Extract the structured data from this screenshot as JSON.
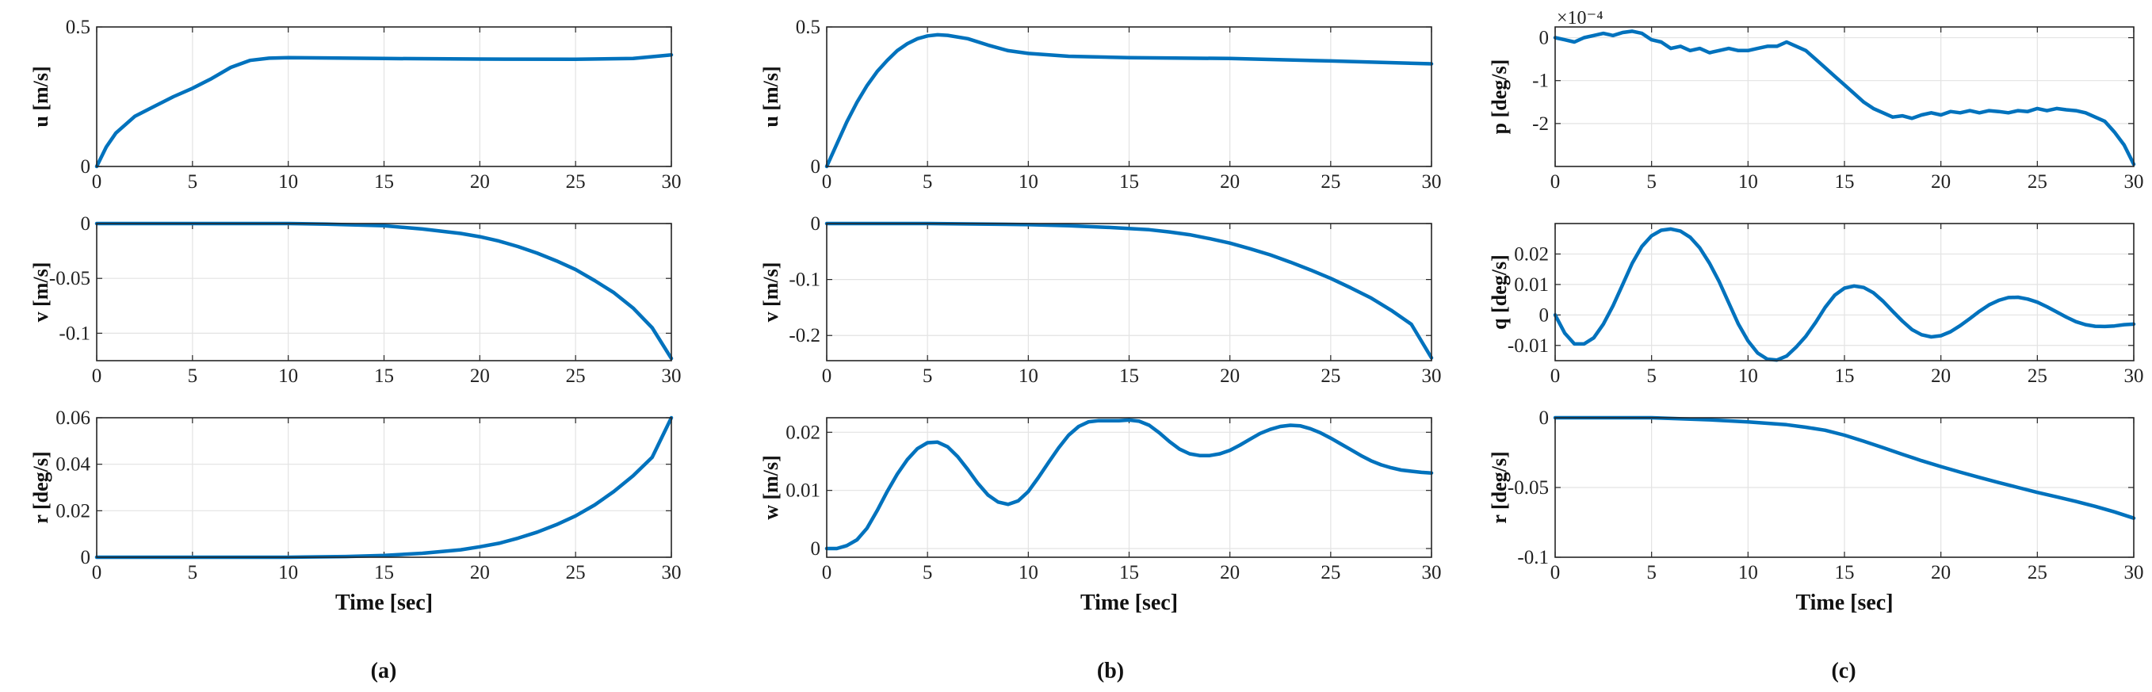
{
  "captions": [
    "(a)",
    "(b)",
    "(c)"
  ],
  "x_label": "Time [sec]",
  "colors": {
    "line": "#0072BD",
    "axis": "#262626",
    "grid": "#e3e3e3"
  },
  "chart_data": [
    {
      "type": "line",
      "column": 0,
      "row": 0,
      "ylabel": "u [m/s]",
      "xlim": [
        0,
        30
      ],
      "ylim": [
        0,
        0.5
      ],
      "xticks": [
        0,
        5,
        10,
        15,
        20,
        25,
        30
      ],
      "xtick_labels": [
        "0",
        "5",
        "10",
        "15",
        "20",
        "25",
        "30"
      ],
      "yticks": [
        0,
        0.5
      ],
      "ytick_labels": [
        "0",
        "0.5"
      ],
      "show_xlabel": false,
      "x": [
        0,
        0.5,
        1,
        2,
        3,
        4,
        5,
        6,
        7,
        8,
        9,
        10,
        12,
        15,
        20,
        25,
        28,
        30
      ],
      "y": [
        0,
        0.07,
        0.12,
        0.18,
        0.215,
        0.25,
        0.28,
        0.315,
        0.355,
        0.38,
        0.388,
        0.39,
        0.389,
        0.387,
        0.385,
        0.384,
        0.387,
        0.4
      ]
    },
    {
      "type": "line",
      "column": 0,
      "row": 1,
      "ylabel": "v [m/s]",
      "xlim": [
        0,
        30
      ],
      "ylim": [
        -0.125,
        0
      ],
      "xticks": [
        0,
        5,
        10,
        15,
        20,
        25,
        30
      ],
      "xtick_labels": [
        "0",
        "5",
        "10",
        "15",
        "20",
        "25",
        "30"
      ],
      "yticks": [
        0,
        -0.05,
        -0.1
      ],
      "ytick_labels": [
        "0",
        "-0.05",
        "-0.1"
      ],
      "show_xlabel": false,
      "x": [
        0,
        5,
        10,
        12,
        15,
        17,
        19,
        20,
        21,
        22,
        23,
        24,
        25,
        26,
        27,
        28,
        29,
        30
      ],
      "y": [
        0,
        0,
        0,
        -0.0005,
        -0.002,
        -0.005,
        -0.009,
        -0.012,
        -0.016,
        -0.021,
        -0.027,
        -0.034,
        -0.042,
        -0.052,
        -0.063,
        -0.077,
        -0.095,
        -0.123
      ]
    },
    {
      "type": "line",
      "column": 0,
      "row": 2,
      "ylabel": "r [deg/s]",
      "xlim": [
        0,
        30
      ],
      "ylim": [
        0,
        0.06
      ],
      "xticks": [
        0,
        5,
        10,
        15,
        20,
        25,
        30
      ],
      "xtick_labels": [
        "0",
        "5",
        "10",
        "15",
        "20",
        "25",
        "30"
      ],
      "yticks": [
        0,
        0.02,
        0.04,
        0.06
      ],
      "ytick_labels": [
        "0",
        "0.02",
        "0.04",
        "0.06"
      ],
      "show_xlabel": true,
      "x": [
        0,
        5,
        10,
        13,
        15,
        17,
        19,
        20,
        21,
        22,
        23,
        24,
        25,
        26,
        27,
        28,
        29,
        30
      ],
      "y": [
        0,
        0,
        0,
        0.0003,
        0.0008,
        0.0017,
        0.0032,
        0.0045,
        0.006,
        0.0082,
        0.0108,
        0.014,
        0.0178,
        0.0225,
        0.0283,
        0.035,
        0.043,
        0.06
      ]
    },
    {
      "type": "line",
      "column": 1,
      "row": 0,
      "ylabel": "u [m/s]",
      "xlim": [
        0,
        30
      ],
      "ylim": [
        0,
        0.5
      ],
      "xticks": [
        0,
        5,
        10,
        15,
        20,
        25,
        30
      ],
      "xtick_labels": [
        "0",
        "5",
        "10",
        "15",
        "20",
        "25",
        "30"
      ],
      "yticks": [
        0,
        0.5
      ],
      "ytick_labels": [
        "0",
        "0.5"
      ],
      "show_xlabel": false,
      "x": [
        0,
        0.5,
        1,
        1.5,
        2,
        2.5,
        3,
        3.5,
        4,
        4.5,
        5,
        5.5,
        6,
        7,
        8,
        9,
        10,
        12,
        15,
        20,
        25,
        30
      ],
      "y": [
        0,
        0.08,
        0.16,
        0.23,
        0.29,
        0.34,
        0.38,
        0.415,
        0.44,
        0.458,
        0.468,
        0.472,
        0.47,
        0.458,
        0.435,
        0.415,
        0.405,
        0.395,
        0.39,
        0.387,
        0.378,
        0.368
      ]
    },
    {
      "type": "line",
      "column": 1,
      "row": 1,
      "ylabel": "v [m/s]",
      "xlim": [
        0,
        30
      ],
      "ylim": [
        -0.245,
        0
      ],
      "xticks": [
        0,
        5,
        10,
        15,
        20,
        25,
        30
      ],
      "xtick_labels": [
        "0",
        "5",
        "10",
        "15",
        "20",
        "25",
        "30"
      ],
      "yticks": [
        0,
        -0.1,
        -0.2
      ],
      "ytick_labels": [
        "0",
        "-0.1",
        "-0.2"
      ],
      "show_xlabel": false,
      "x": [
        0,
        5,
        8,
        10,
        12,
        14,
        16,
        17,
        18,
        19,
        20,
        21,
        22,
        23,
        24,
        25,
        26,
        27,
        28,
        29,
        30
      ],
      "y": [
        0,
        0,
        -0.001,
        -0.002,
        -0.004,
        -0.007,
        -0.011,
        -0.015,
        -0.02,
        -0.027,
        -0.035,
        -0.045,
        -0.056,
        -0.069,
        -0.083,
        -0.098,
        -0.115,
        -0.133,
        -0.155,
        -0.18,
        -0.24
      ]
    },
    {
      "type": "line",
      "column": 1,
      "row": 2,
      "ylabel": "w [m/s]",
      "xlim": [
        0,
        30
      ],
      "ylim": [
        -0.0015,
        0.0225
      ],
      "xticks": [
        0,
        5,
        10,
        15,
        20,
        25,
        30
      ],
      "xtick_labels": [
        "0",
        "5",
        "10",
        "15",
        "20",
        "25",
        "30"
      ],
      "yticks": [
        0,
        0.01,
        0.02
      ],
      "ytick_labels": [
        "0",
        "0.01",
        "0.02"
      ],
      "show_xlabel": true,
      "x": [
        0,
        0.5,
        1,
        1.5,
        2,
        2.5,
        3,
        3.5,
        4,
        4.5,
        5,
        5.5,
        6,
        6.5,
        7,
        7.5,
        8,
        8.5,
        9,
        9.5,
        10,
        10.5,
        11,
        11.5,
        12,
        12.5,
        13,
        13.5,
        14,
        14.5,
        15,
        15.5,
        16,
        16.5,
        17,
        17.5,
        18,
        18.5,
        19,
        19.5,
        20,
        20.5,
        21,
        21.5,
        22,
        22.5,
        23,
        23.5,
        24,
        24.5,
        25,
        25.5,
        26,
        26.5,
        27,
        27.5,
        28,
        28.5,
        29,
        29.5,
        30
      ],
      "y": [
        0,
        0,
        0.0005,
        0.0015,
        0.0035,
        0.0065,
        0.0098,
        0.0128,
        0.0153,
        0.0172,
        0.0182,
        0.0183,
        0.0175,
        0.0158,
        0.0136,
        0.0112,
        0.0092,
        0.008,
        0.0076,
        0.0082,
        0.0098,
        0.0122,
        0.0148,
        0.0173,
        0.0195,
        0.021,
        0.0218,
        0.022,
        0.022,
        0.022,
        0.0221,
        0.0219,
        0.0212,
        0.0199,
        0.0184,
        0.0171,
        0.0163,
        0.016,
        0.016,
        0.0163,
        0.0169,
        0.0178,
        0.0188,
        0.0198,
        0.0205,
        0.021,
        0.0212,
        0.0211,
        0.0206,
        0.0199,
        0.019,
        0.018,
        0.017,
        0.016,
        0.0151,
        0.0144,
        0.0139,
        0.0135,
        0.0133,
        0.0131,
        0.013
      ]
    },
    {
      "type": "line",
      "column": 2,
      "row": 0,
      "ylabel": "p [deg/s]",
      "scale_label": "×10⁻⁴",
      "xlim": [
        0,
        30
      ],
      "ylim": [
        -3,
        0.25
      ],
      "xticks": [
        0,
        5,
        10,
        15,
        20,
        25,
        30
      ],
      "xtick_labels": [
        "0",
        "5",
        "10",
        "15",
        "20",
        "25",
        "30"
      ],
      "yticks": [
        0,
        -1,
        -2
      ],
      "ytick_labels": [
        "0",
        "-1",
        "-2"
      ],
      "show_xlabel": false,
      "x": [
        0,
        0.5,
        1,
        1.5,
        2,
        2.5,
        3,
        3.5,
        4,
        4.5,
        5,
        5.5,
        6,
        6.5,
        7,
        7.5,
        8,
        8.5,
        9,
        9.5,
        10,
        10.5,
        11,
        11.5,
        12,
        12.5,
        13,
        13.5,
        14,
        14.5,
        15,
        15.5,
        16,
        16.5,
        17,
        17.5,
        18,
        18.5,
        19,
        19.5,
        20,
        20.5,
        21,
        21.5,
        22,
        22.5,
        23,
        23.5,
        24,
        24.5,
        25,
        25.5,
        26,
        26.5,
        27,
        27.5,
        28,
        28.5,
        29,
        29.5,
        30
      ],
      "y": [
        0,
        -0.05,
        -0.1,
        0,
        0.05,
        0.1,
        0.05,
        0.12,
        0.15,
        0.1,
        -0.05,
        -0.1,
        -0.25,
        -0.2,
        -0.3,
        -0.25,
        -0.35,
        -0.3,
        -0.25,
        -0.3,
        -0.3,
        -0.25,
        -0.2,
        -0.2,
        -0.1,
        -0.2,
        -0.3,
        -0.5,
        -0.7,
        -0.9,
        -1.1,
        -1.3,
        -1.5,
        -1.65,
        -1.75,
        -1.85,
        -1.82,
        -1.88,
        -1.8,
        -1.75,
        -1.8,
        -1.72,
        -1.75,
        -1.7,
        -1.75,
        -1.7,
        -1.72,
        -1.75,
        -1.7,
        -1.72,
        -1.65,
        -1.7,
        -1.65,
        -1.68,
        -1.7,
        -1.75,
        -1.85,
        -1.95,
        -2.2,
        -2.5,
        -2.95
      ]
    },
    {
      "type": "line",
      "column": 2,
      "row": 1,
      "ylabel": "q [deg/s]",
      "xlim": [
        0,
        30
      ],
      "ylim": [
        -0.015,
        0.03
      ],
      "xticks": [
        0,
        5,
        10,
        15,
        20,
        25,
        30
      ],
      "xtick_labels": [
        "0",
        "5",
        "10",
        "15",
        "20",
        "25",
        "30"
      ],
      "yticks": [
        -0.01,
        0,
        0.01,
        0.02
      ],
      "ytick_labels": [
        "-0.01",
        "0",
        "0.01",
        "0.02"
      ],
      "show_xlabel": false,
      "x": [
        0,
        0.5,
        1,
        1.5,
        2,
        2.5,
        3,
        3.5,
        4,
        4.5,
        5,
        5.5,
        6,
        6.5,
        7,
        7.5,
        8,
        8.5,
        9,
        9.5,
        10,
        10.5,
        11,
        11.5,
        12,
        12.5,
        13,
        13.5,
        14,
        14.5,
        15,
        15.5,
        16,
        16.5,
        17,
        17.5,
        18,
        18.5,
        19,
        19.5,
        20,
        20.5,
        21,
        21.5,
        22,
        22.5,
        23,
        23.5,
        24,
        24.5,
        25,
        25.5,
        26,
        26.5,
        27,
        27.5,
        28,
        28.5,
        29,
        29.5,
        30
      ],
      "y": [
        0,
        -0.006,
        -0.0095,
        -0.0095,
        -0.0075,
        -0.003,
        0.003,
        0.01,
        0.017,
        0.0225,
        0.026,
        0.0278,
        0.0282,
        0.0275,
        0.0255,
        0.022,
        0.017,
        0.011,
        0.004,
        -0.003,
        -0.0085,
        -0.0125,
        -0.0145,
        -0.0148,
        -0.0135,
        -0.0105,
        -0.007,
        -0.0025,
        0.0025,
        0.0065,
        0.0088,
        0.0095,
        0.009,
        0.0073,
        0.0045,
        0.0012,
        -0.002,
        -0.0048,
        -0.0065,
        -0.0072,
        -0.0068,
        -0.0055,
        -0.0035,
        -0.0012,
        0.0012,
        0.0033,
        0.0048,
        0.0057,
        0.0058,
        0.0052,
        0.0042,
        0.0027,
        0.001,
        -0.0007,
        -0.0022,
        -0.0032,
        -0.0037,
        -0.0038,
        -0.0036,
        -0.0032,
        -0.003
      ]
    },
    {
      "type": "line",
      "column": 2,
      "row": 2,
      "ylabel": "r [deg/s]",
      "xlim": [
        0,
        30
      ],
      "ylim": [
        -0.1,
        0
      ],
      "xticks": [
        0,
        5,
        10,
        15,
        20,
        25,
        30
      ],
      "xtick_labels": [
        "0",
        "5",
        "10",
        "15",
        "20",
        "25",
        "30"
      ],
      "yticks": [
        0,
        -0.05,
        -0.1
      ],
      "ytick_labels": [
        "0",
        "-0.05",
        "-0.1"
      ],
      "show_xlabel": true,
      "x": [
        0,
        5,
        8,
        10,
        12,
        13,
        14,
        15,
        16,
        17,
        18,
        19,
        20,
        21,
        22,
        23,
        24,
        25,
        26,
        27,
        28,
        29,
        30
      ],
      "y": [
        0,
        0,
        -0.0015,
        -0.003,
        -0.005,
        -0.0068,
        -0.009,
        -0.0125,
        -0.0168,
        -0.0215,
        -0.0262,
        -0.0308,
        -0.035,
        -0.039,
        -0.0428,
        -0.0465,
        -0.05,
        -0.0535,
        -0.0567,
        -0.06,
        -0.0635,
        -0.0675,
        -0.072
      ]
    }
  ]
}
